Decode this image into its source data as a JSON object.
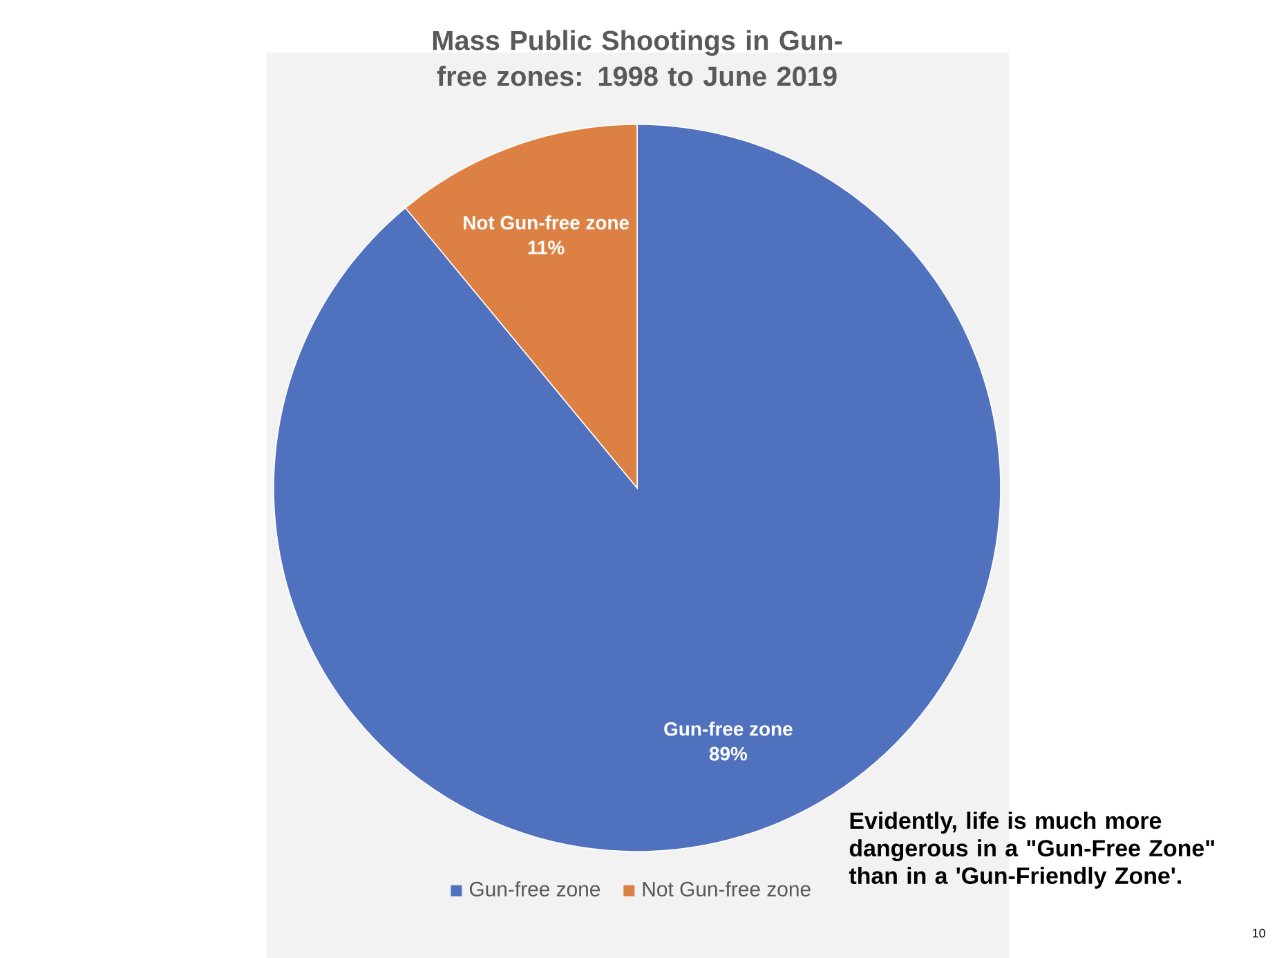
{
  "chart_data": {
    "type": "pie",
    "title": "Mass Public Shootings in Gun-free zones: 1998 to June 2019",
    "categories": [
      "Gun-free zone",
      "Not Gun-free zone"
    ],
    "values": [
      89,
      11
    ],
    "colors": [
      "#4f71be",
      "#dd8043"
    ],
    "value_labels": [
      "89%",
      "11%"
    ],
    "legend": "bottom",
    "annotations": [
      "Evidently, life is much more dangerous in a \"Gun-Free Zone\" than in a 'Gun-Friendly Zone'.",
      "10"
    ]
  }
}
